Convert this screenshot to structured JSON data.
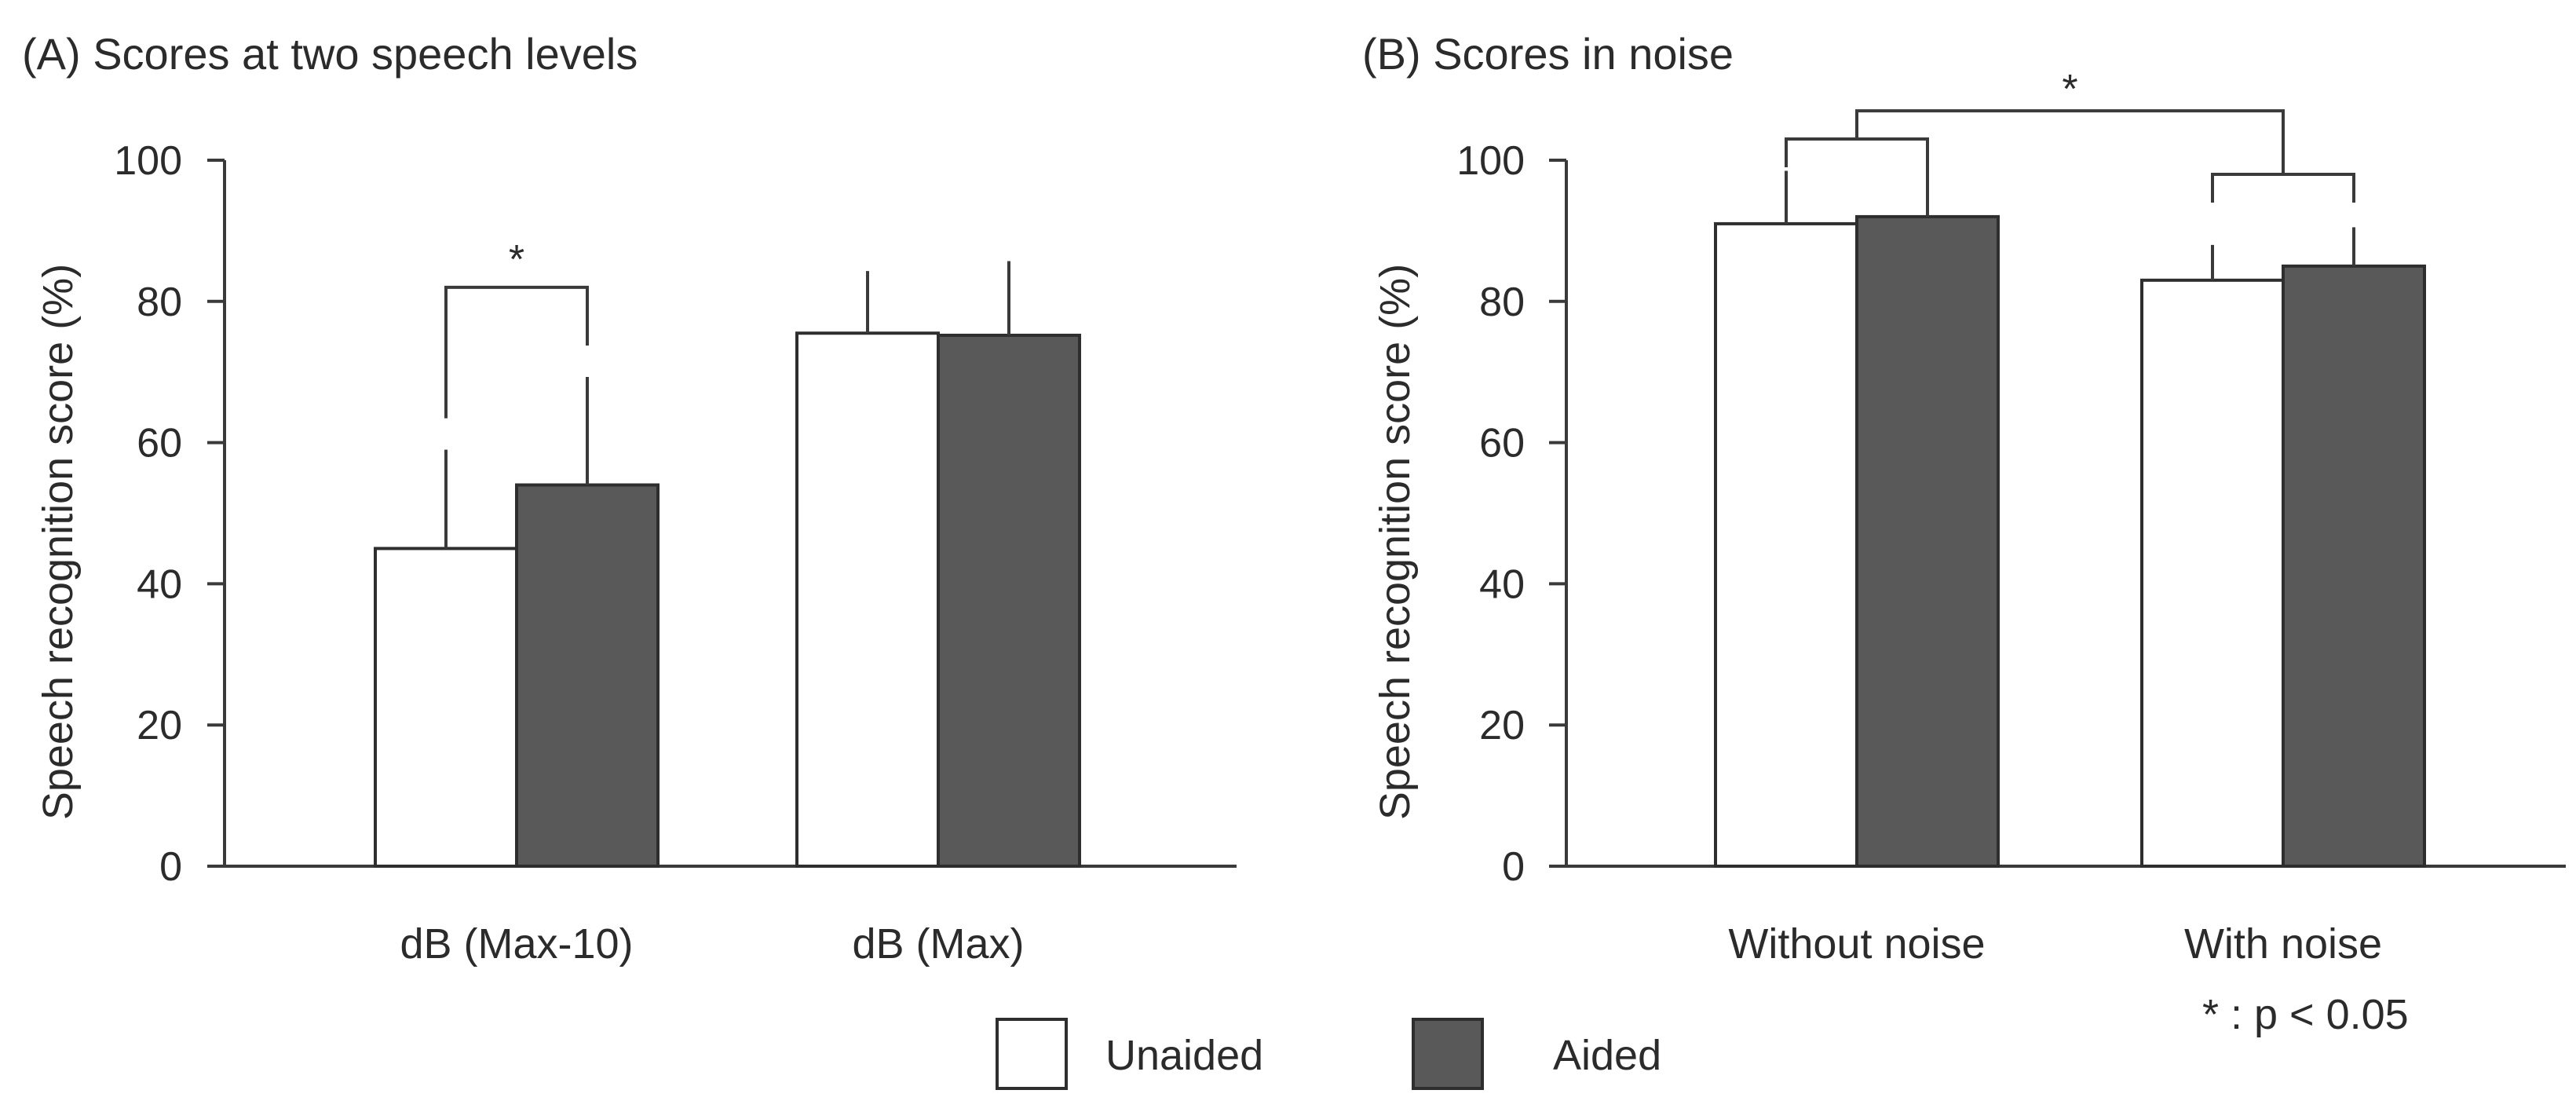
{
  "chart_data": [
    {
      "type": "bar",
      "title": "(A) Scores at two speech levels",
      "ylabel": "Speech recognition score (%)",
      "xlabel": "",
      "ylim": [
        0,
        100
      ],
      "yticks": [
        0,
        20,
        40,
        60,
        80,
        100
      ],
      "grid": false,
      "categories": [
        "dB (Max-10)",
        "dB (Max)"
      ],
      "series": [
        {
          "name": "Unaided",
          "values": [
            45,
            75.5
          ],
          "errors": [
            14,
            8.8
          ]
        },
        {
          "name": "Aided",
          "values": [
            54,
            75.2
          ],
          "errors": [
            15.3,
            10.5
          ]
        }
      ],
      "annotations": [
        {
          "type": "significance",
          "between": [
            "Unaided",
            "Aided"
          ],
          "category": "dB (Max-10)",
          "label": "*"
        }
      ]
    },
    {
      "type": "bar",
      "title": "(B) Scores in noise",
      "ylabel": "Speech recognition score (%)",
      "xlabel": "",
      "ylim": [
        0,
        100
      ],
      "yticks": [
        0,
        20,
        40,
        60,
        80,
        100
      ],
      "grid": false,
      "categories": [
        "Without noise",
        "With noise"
      ],
      "series": [
        {
          "name": "Unaided",
          "values": [
            91,
            83
          ],
          "errors": [
            7.5,
            5
          ]
        },
        {
          "name": "Aided",
          "values": [
            92,
            85
          ],
          "errors": [
            7.5,
            5.5
          ]
        }
      ],
      "annotations": [
        {
          "type": "significance",
          "between": [
            "Without noise",
            "With noise"
          ],
          "label": "*"
        }
      ]
    }
  ],
  "legend": {
    "placement": "bottom-center",
    "items": [
      {
        "label": "Unaided",
        "color": "#ffffff"
      },
      {
        "label": "Aided",
        "color": "#595959"
      }
    ]
  },
  "footnote": "* : p < 0.05",
  "colors": {
    "unaided": "#ffffff",
    "aided": "#595959",
    "ink": "#2b2b2b"
  }
}
